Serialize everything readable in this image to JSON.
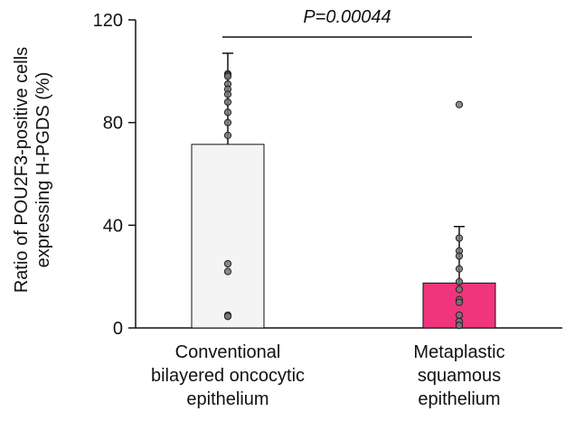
{
  "chart_data": {
    "type": "bar",
    "categories": [
      [
        "Conventional",
        "bilayered oncocytic",
        "epithelium"
      ],
      [
        "Metaplastic",
        "squamous",
        "epithelium"
      ]
    ],
    "values": [
      71.5,
      17.5
    ],
    "error_upper": [
      107,
      39.5
    ],
    "bar_colors": [
      "#f4f4f4",
      "#f0357c"
    ],
    "points": [
      [
        99,
        98.5,
        98,
        95,
        93,
        91,
        88,
        84,
        80,
        75,
        25,
        22,
        5,
        4.5
      ],
      [
        87,
        35,
        30,
        28,
        23,
        18,
        15,
        11,
        10,
        5,
        2.5,
        1
      ]
    ],
    "ylabel": [
      "Ratio of POU2F3-positive cells",
      "expressing H-PGDS (%)"
    ],
    "ylim": [
      0,
      120
    ],
    "yticks": [
      0,
      40,
      80,
      120
    ],
    "annotation": "P=0.00044",
    "grid": false
  }
}
